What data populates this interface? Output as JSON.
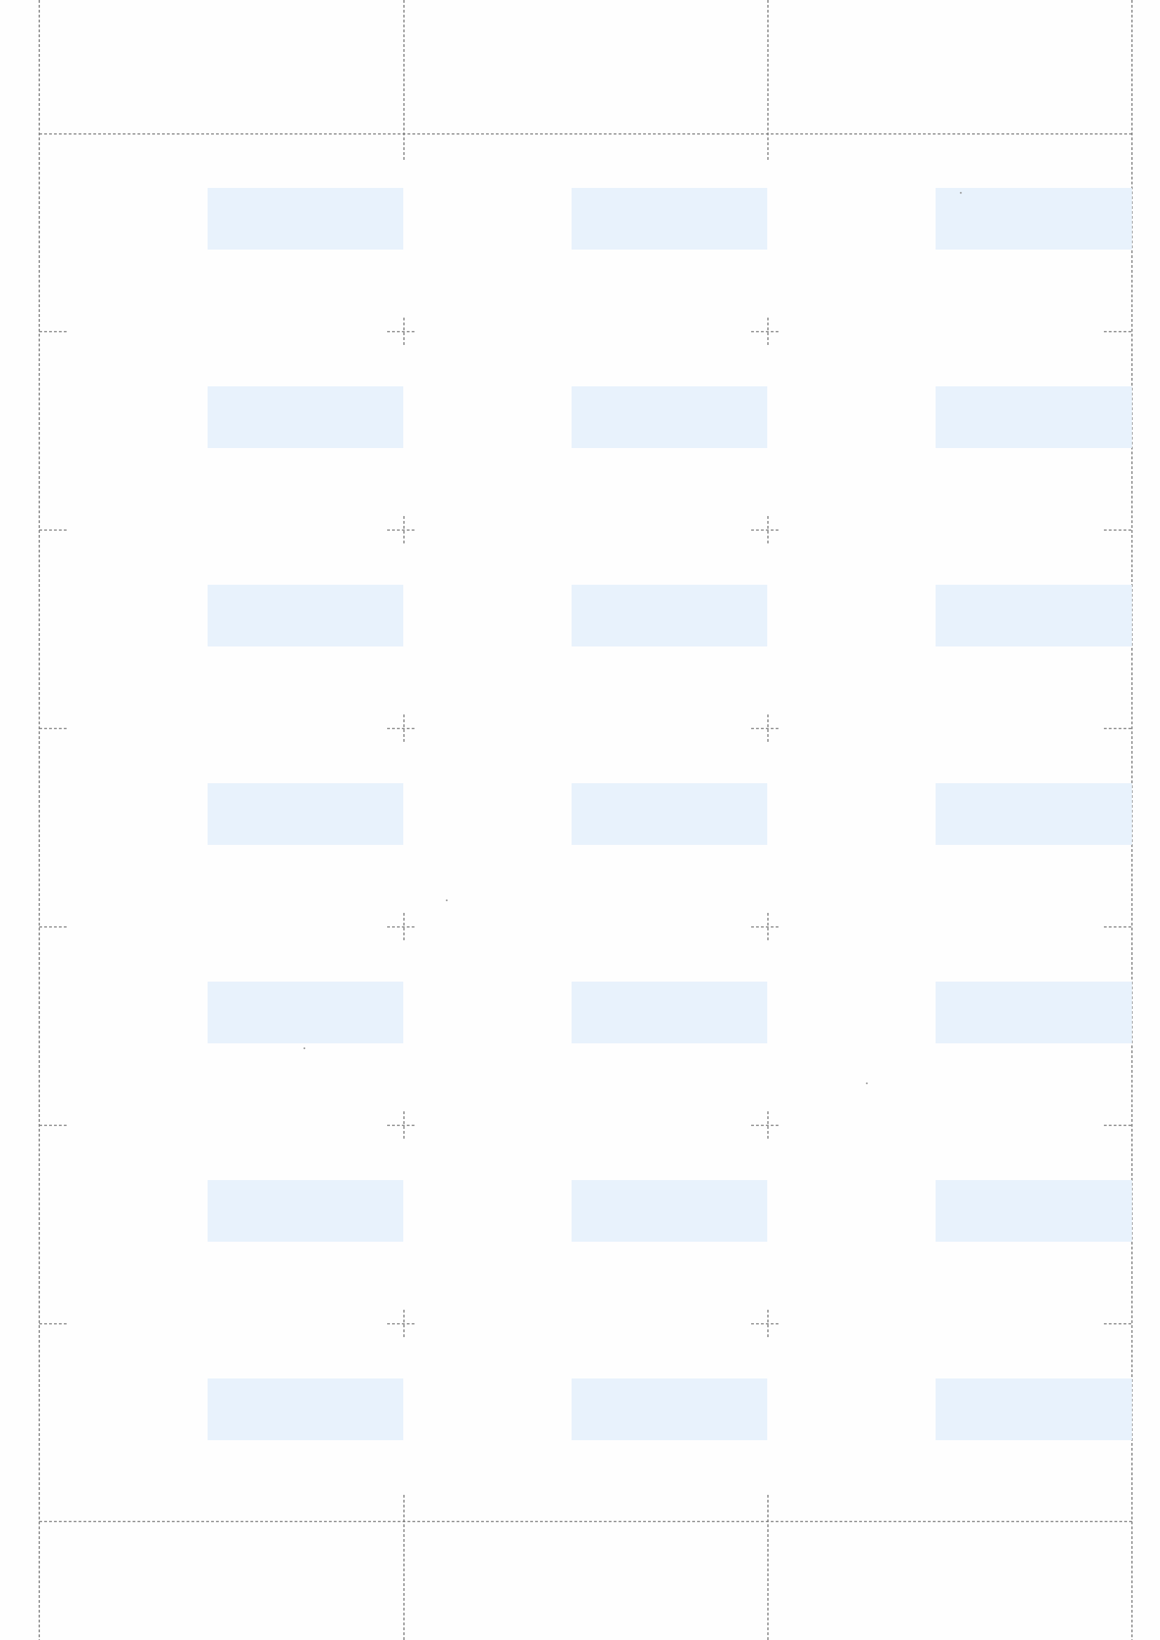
{
  "sheet": {
    "columns": 3,
    "rows": 7,
    "label_count": 21,
    "has_text": false
  },
  "colors": {
    "paper": "#fefefe",
    "label_fill": "#e8f2fc",
    "guide_line": "#7a7a7a",
    "specks": "#9a9a9a"
  },
  "guides": {
    "style": "dashed",
    "crop_marks": "crosshair"
  }
}
